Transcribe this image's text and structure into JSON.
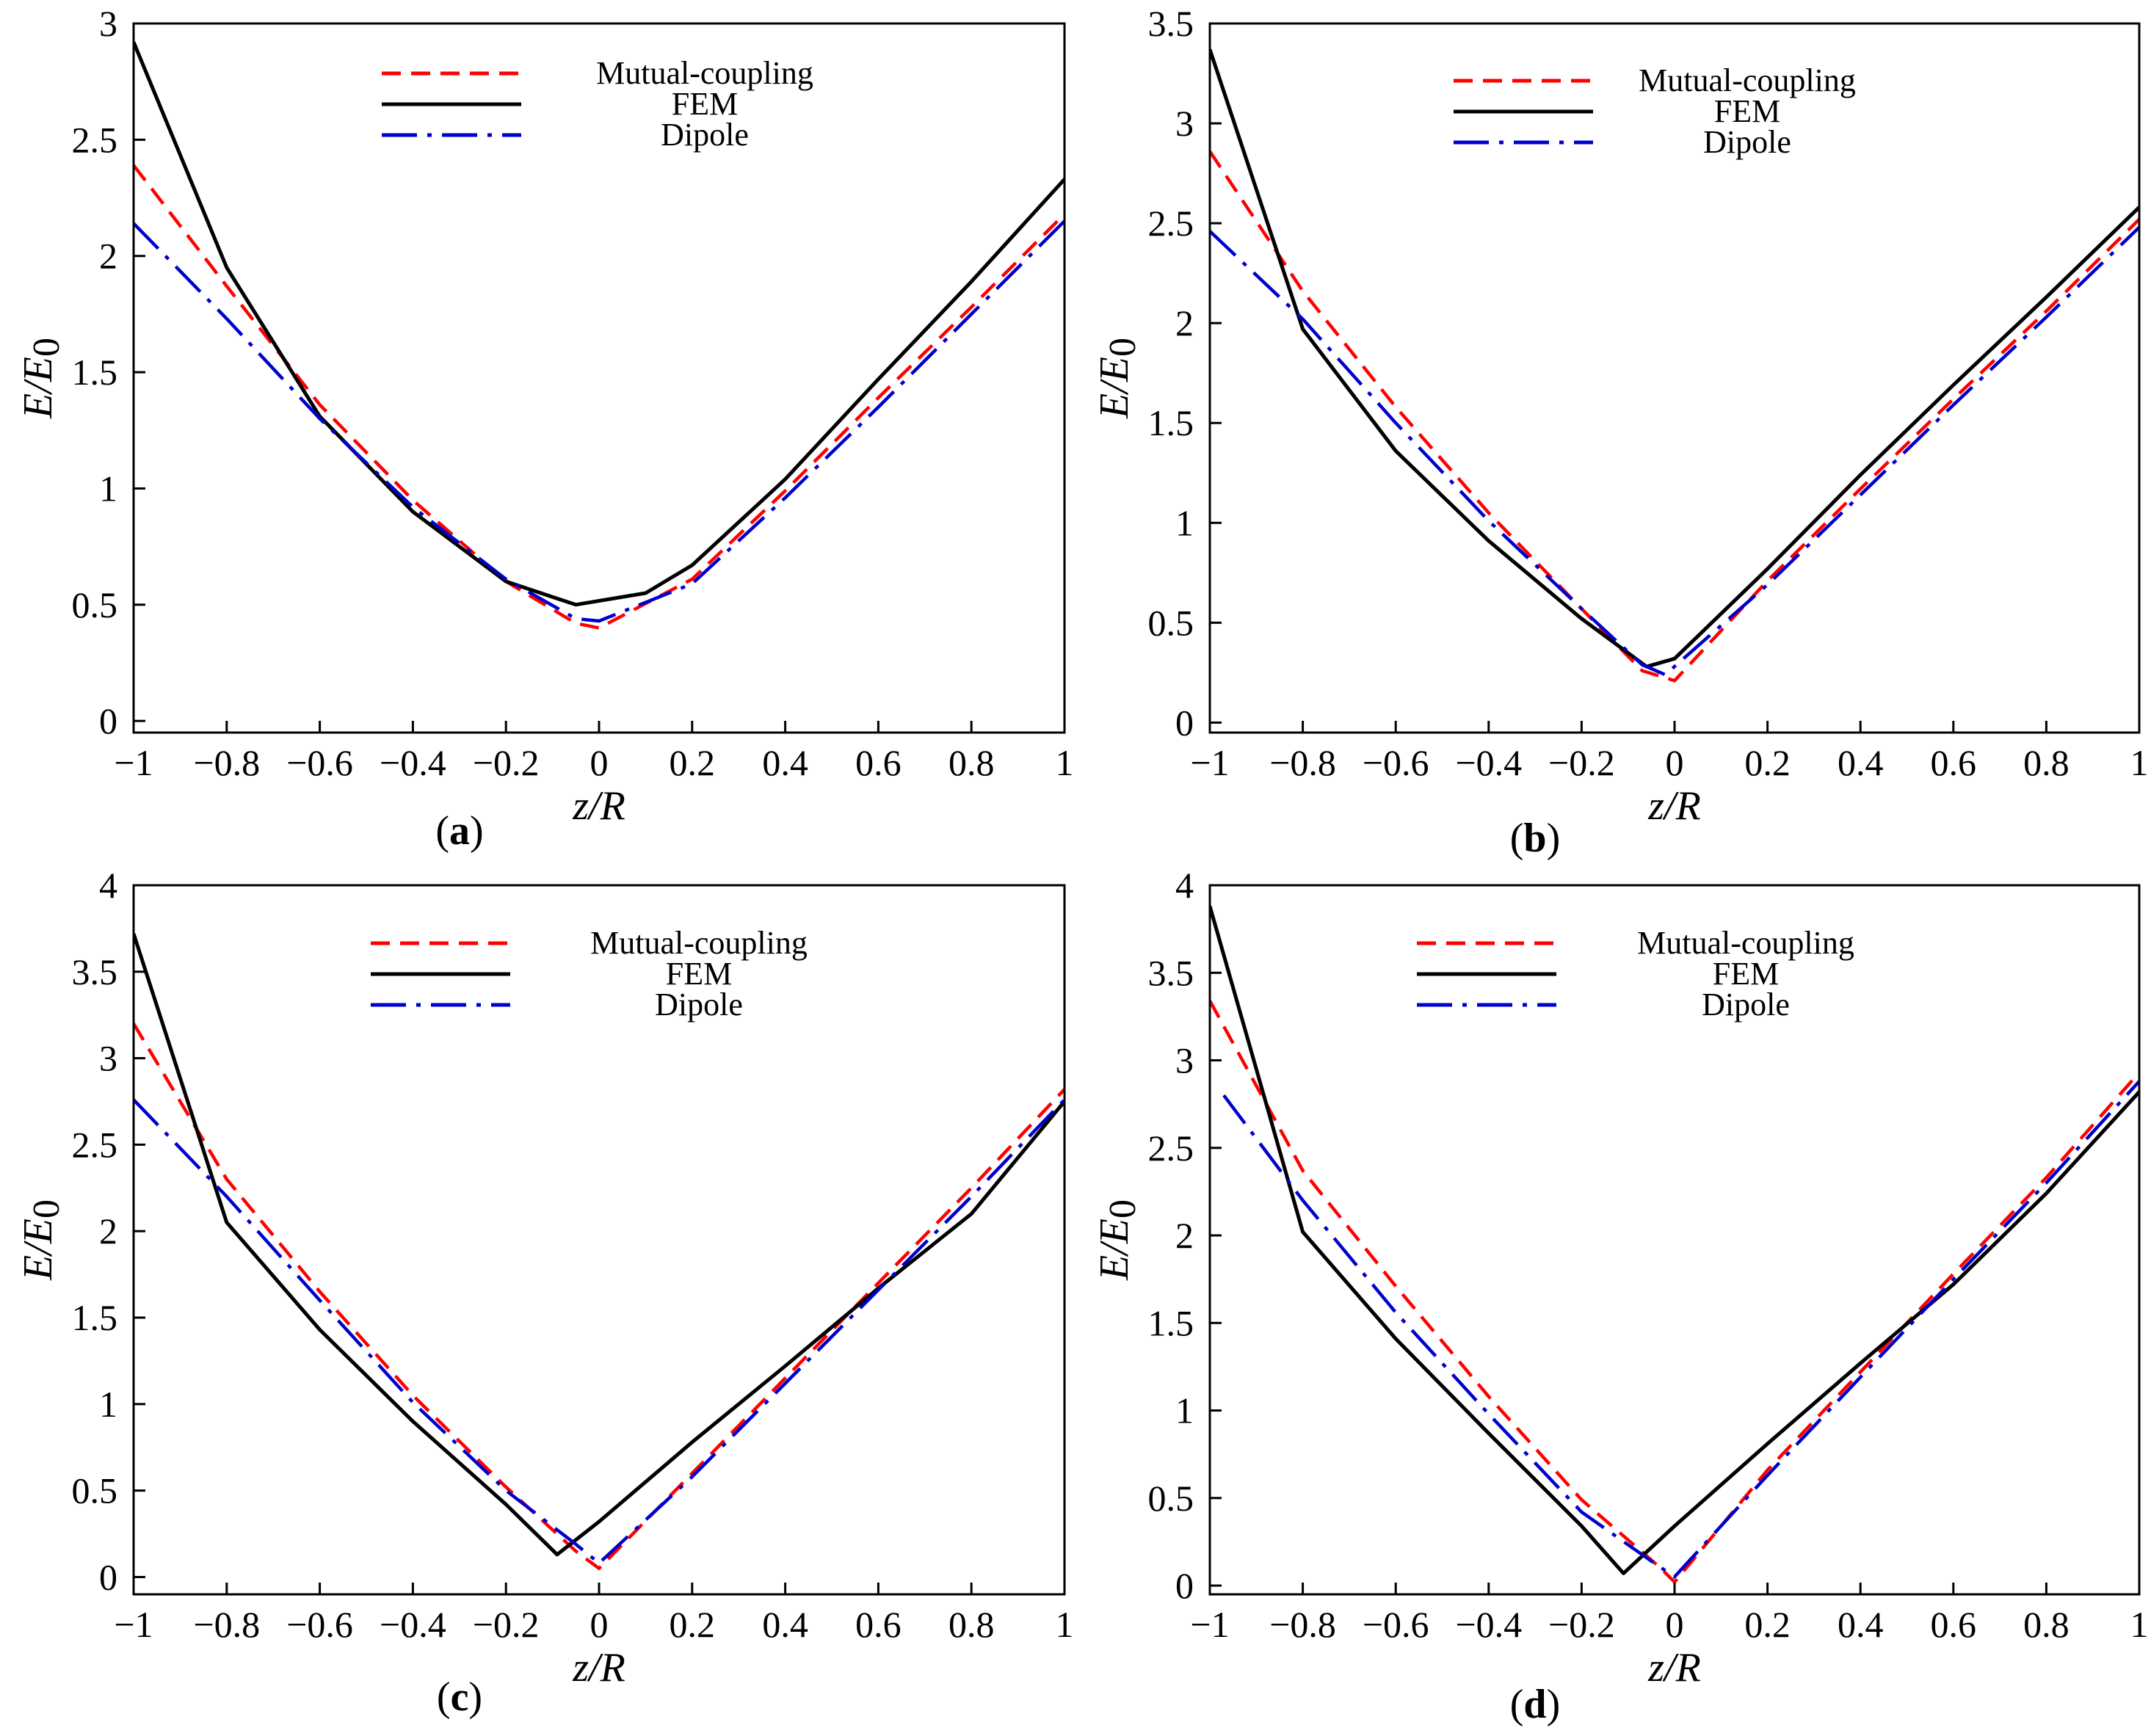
{
  "figure": {
    "legend_colors": {
      "Mutual-coupling": "#ff0000",
      "FEM": "#000000",
      "Dipole": "#0000cc"
    }
  },
  "chart_data": [
    {
      "id": "a",
      "type": "line",
      "panel_label": "a",
      "xlabel": "z/R",
      "ylabel": "E/E0",
      "xlim": [
        -1,
        1
      ],
      "ylim": [
        -0.05,
        3
      ],
      "xticks": [
        -1,
        -0.8,
        -0.6,
        -0.4,
        -0.2,
        0,
        0.2,
        0.4,
        0.6,
        0.8,
        1
      ],
      "xtick_labels": [
        "−1",
        "−0.8",
        "−0.6",
        "−0.4",
        "−0.2",
        "0",
        "0.2",
        "0.4",
        "0.6",
        "0.8",
        "1"
      ],
      "yticks": [
        0,
        0.5,
        1,
        1.5,
        2,
        2.5,
        3
      ],
      "ytick_labels": [
        "0",
        "0.5",
        "1",
        "1.5",
        "2",
        "2.5",
        "3"
      ],
      "legend": [
        "Mutual-coupling",
        "FEM",
        "Dipole"
      ],
      "legend_position": "top-center",
      "series": [
        {
          "name": "Mutual-coupling",
          "style": "dashed",
          "x": [
            -1,
            -0.8,
            -0.6,
            -0.4,
            -0.2,
            -0.05,
            0,
            0.2,
            0.4,
            0.6,
            0.8,
            1
          ],
          "y": [
            2.39,
            1.87,
            1.36,
            0.95,
            0.6,
            0.42,
            0.4,
            0.61,
            0.99,
            1.39,
            1.78,
            2.18
          ]
        },
        {
          "name": "FEM",
          "style": "solid",
          "x": [
            -1,
            -0.8,
            -0.6,
            -0.4,
            -0.2,
            -0.05,
            0.1,
            0.2,
            0.4,
            0.6,
            0.8,
            1
          ],
          "y": [
            2.92,
            1.95,
            1.31,
            0.9,
            0.6,
            0.5,
            0.55,
            0.67,
            1.04,
            1.47,
            1.89,
            2.33
          ]
        },
        {
          "name": "Dipole",
          "style": "dashdot",
          "x": [
            -1,
            -0.8,
            -0.6,
            -0.4,
            -0.2,
            -0.05,
            0,
            0.2,
            0.4,
            0.6,
            0.8,
            1
          ],
          "y": [
            2.14,
            1.73,
            1.3,
            0.92,
            0.61,
            0.44,
            0.43,
            0.59,
            0.96,
            1.35,
            1.75,
            2.15
          ]
        }
      ]
    },
    {
      "id": "b",
      "type": "line",
      "panel_label": "b",
      "xlabel": "z/R",
      "ylabel": "E/E0",
      "xlim": [
        -1,
        1
      ],
      "ylim": [
        -0.05,
        3.5
      ],
      "xticks": [
        -1,
        -0.8,
        -0.6,
        -0.4,
        -0.2,
        0,
        0.2,
        0.4,
        0.6,
        0.8,
        1
      ],
      "xtick_labels": [
        "−1",
        "−0.8",
        "−0.6",
        "−0.4",
        "−0.2",
        "0",
        "0.2",
        "0.4",
        "0.6",
        "0.8",
        "1"
      ],
      "yticks": [
        0,
        0.5,
        1,
        1.5,
        2,
        2.5,
        3,
        3.5
      ],
      "ytick_labels": [
        "0",
        "0.5",
        "1",
        "1.5",
        "2",
        "2.5",
        "3",
        "3.5"
      ],
      "legend": [
        "Mutual-coupling",
        "FEM",
        "Dipole"
      ],
      "legend_position": "top-center",
      "series": [
        {
          "name": "Mutual-coupling",
          "style": "dashed",
          "x": [
            -1,
            -0.8,
            -0.6,
            -0.4,
            -0.2,
            -0.07,
            0,
            0.2,
            0.4,
            0.6,
            0.8,
            1
          ],
          "y": [
            2.86,
            2.16,
            1.58,
            1.05,
            0.57,
            0.26,
            0.21,
            0.71,
            1.17,
            1.62,
            2.06,
            2.52
          ]
        },
        {
          "name": "FEM",
          "style": "solid",
          "x": [
            -1,
            -0.8,
            -0.6,
            -0.4,
            -0.2,
            -0.06,
            0,
            0.2,
            0.4,
            0.6,
            0.8,
            1
          ],
          "y": [
            3.37,
            1.97,
            1.36,
            0.91,
            0.52,
            0.28,
            0.32,
            0.77,
            1.24,
            1.69,
            2.13,
            2.58
          ]
        },
        {
          "name": "Dipole",
          "style": "dashdot",
          "x": [
            -1,
            -0.8,
            -0.6,
            -0.4,
            -0.2,
            -0.07,
            -0.02,
            0.2,
            0.4,
            0.6,
            0.8,
            1
          ],
          "y": [
            2.46,
            2.02,
            1.5,
            1.01,
            0.57,
            0.29,
            0.24,
            0.69,
            1.14,
            1.59,
            2.03,
            2.48
          ]
        }
      ]
    },
    {
      "id": "c",
      "type": "line",
      "panel_label": "c",
      "xlabel": "z/R",
      "ylabel": "E/E0",
      "xlim": [
        -1,
        1
      ],
      "ylim": [
        -0.1,
        4
      ],
      "xticks": [
        -1,
        -0.8,
        -0.6,
        -0.4,
        -0.2,
        0,
        0.2,
        0.4,
        0.6,
        0.8,
        1
      ],
      "xtick_labels": [
        "−1",
        "−0.8",
        "−0.6",
        "−0.4",
        "−0.2",
        "0",
        "0.2",
        "0.4",
        "0.6",
        "0.8",
        "1"
      ],
      "yticks": [
        0,
        0.5,
        1,
        1.5,
        2,
        2.5,
        3,
        3.5,
        4
      ],
      "ytick_labels": [
        "0",
        "0.5",
        "1",
        "1.5",
        "2",
        "2.5",
        "3",
        "3.5",
        "4"
      ],
      "legend": [
        "Mutual-coupling",
        "FEM",
        "Dipole"
      ],
      "legend_position": "top-center",
      "series": [
        {
          "name": "Mutual-coupling",
          "style": "dashed",
          "x": [
            -1,
            -0.8,
            -0.6,
            -0.4,
            -0.2,
            -0.05,
            0,
            0.2,
            0.4,
            0.6,
            0.8,
            1
          ],
          "y": [
            3.2,
            2.3,
            1.65,
            1.05,
            0.52,
            0.15,
            0.05,
            0.6,
            1.15,
            1.7,
            2.25,
            2.82
          ]
        },
        {
          "name": "FEM",
          "style": "solid",
          "x": [
            -1,
            -0.8,
            -0.6,
            -0.4,
            -0.2,
            -0.09,
            0,
            0.2,
            0.4,
            0.6,
            0.8,
            1
          ],
          "y": [
            3.72,
            2.05,
            1.43,
            0.9,
            0.42,
            0.13,
            0.32,
            0.78,
            1.22,
            1.67,
            2.1,
            2.75
          ]
        },
        {
          "name": "Dipole",
          "style": "dashdot",
          "x": [
            -1,
            -0.8,
            -0.6,
            -0.4,
            -0.2,
            -0.05,
            0,
            0.2,
            0.4,
            0.6,
            0.8,
            1
          ],
          "y": [
            2.76,
            2.2,
            1.6,
            1.01,
            0.5,
            0.19,
            0.08,
            0.58,
            1.12,
            1.66,
            2.2,
            2.76
          ]
        }
      ]
    },
    {
      "id": "d",
      "type": "line",
      "panel_label": "d",
      "xlabel": "z/R",
      "ylabel": "E/E0",
      "xlim": [
        -1,
        1
      ],
      "ylim": [
        -0.05,
        4
      ],
      "xticks": [
        -1,
        -0.8,
        -0.6,
        -0.4,
        -0.2,
        0,
        0.2,
        0.4,
        0.6,
        0.8,
        1
      ],
      "xtick_labels": [
        "−1",
        "−0.8",
        "−0.6",
        "−0.4",
        "−0.2",
        "0",
        "0.2",
        "0.4",
        "0.6",
        "0.8",
        "1"
      ],
      "yticks": [
        0,
        0.5,
        1,
        1.5,
        2,
        2.5,
        3,
        3.5,
        4
      ],
      "ytick_labels": [
        "0",
        "0.5",
        "1",
        "1.5",
        "2",
        "2.5",
        "3",
        "3.5",
        "4"
      ],
      "legend": [
        "Mutual-coupling",
        "FEM",
        "Dipole"
      ],
      "legend_position": "top-center",
      "series": [
        {
          "name": "Mutual-coupling",
          "style": "dashed",
          "x": [
            -1,
            -0.8,
            -0.6,
            -0.4,
            -0.2,
            -0.03,
            0,
            0.2,
            0.4,
            0.6,
            0.8,
            1
          ],
          "y": [
            3.34,
            2.37,
            1.71,
            1.08,
            0.49,
            0.1,
            0.02,
            0.66,
            1.22,
            1.78,
            2.33,
            2.93
          ]
        },
        {
          "name": "FEM",
          "style": "solid",
          "x": [
            -1,
            -0.8,
            -0.6,
            -0.4,
            -0.2,
            -0.11,
            0,
            0.2,
            0.4,
            0.6,
            0.8,
            1
          ],
          "y": [
            3.88,
            2.02,
            1.41,
            0.87,
            0.34,
            0.07,
            0.34,
            0.81,
            1.27,
            1.72,
            2.24,
            2.82
          ]
        },
        {
          "name": "Dipole",
          "style": "dashdot",
          "x": [
            -0.97,
            -0.8,
            -0.6,
            -0.4,
            -0.2,
            -0.05,
            0,
            0.2,
            0.4,
            0.6,
            0.8,
            1
          ],
          "y": [
            2.8,
            2.2,
            1.56,
            0.98,
            0.42,
            0.14,
            0.05,
            0.63,
            1.19,
            1.75,
            2.3,
            2.88
          ]
        }
      ]
    }
  ]
}
